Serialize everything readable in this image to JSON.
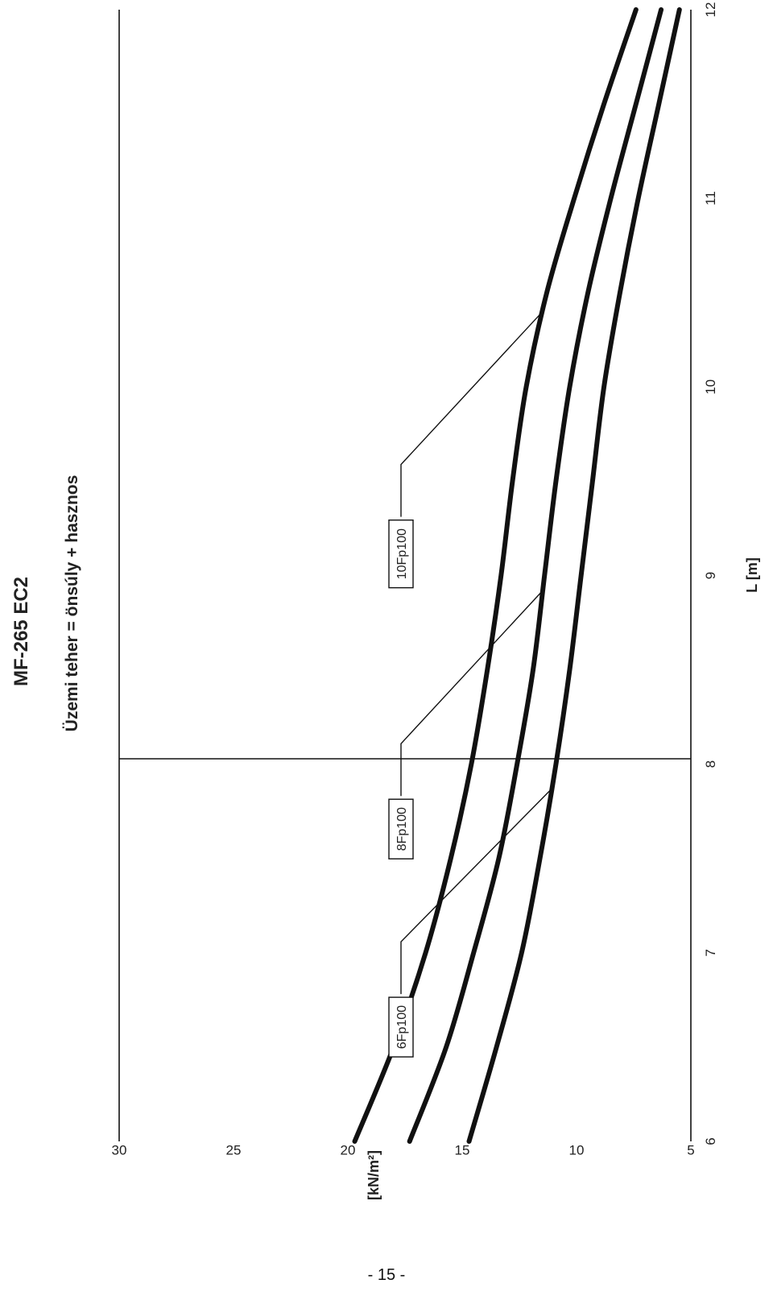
{
  "chart_data": {
    "type": "line",
    "title": "MF-265 EC2",
    "subtitle": "Üzemi teher = önsúly + hasznos",
    "xlabel": "L [m]",
    "ylabel": "[kN/m²]",
    "xlim": [
      6,
      12
    ],
    "ylim": [
      5,
      30
    ],
    "x_ticks": [
      6,
      7,
      8,
      9,
      10,
      11,
      12
    ],
    "y_ticks": [
      5,
      10,
      15,
      20,
      25,
      30
    ],
    "reference_x": 8,
    "grid": false,
    "series": [
      {
        "name": "10Fp100",
        "x": [
          6,
          6.5,
          7,
          7.5,
          8,
          8.5,
          9,
          9.5,
          10,
          10.5,
          11,
          11.5,
          12
        ],
        "y": [
          19.7,
          18.0,
          16.6,
          15.5,
          14.6,
          13.9,
          13.3,
          12.8,
          12.2,
          11.3,
          10.1,
          8.8,
          7.4
        ]
      },
      {
        "name": "8Fp100",
        "x": [
          6,
          6.5,
          7,
          7.5,
          8,
          8.5,
          9,
          9.5,
          10,
          10.5,
          11,
          11.5,
          12
        ],
        "y": [
          17.3,
          15.7,
          14.5,
          13.4,
          12.6,
          11.9,
          11.4,
          10.9,
          10.3,
          9.5,
          8.5,
          7.4,
          6.3
        ]
      },
      {
        "name": "6Fp100",
        "x": [
          6,
          6.5,
          7,
          7.5,
          8,
          8.5,
          9,
          9.5,
          10,
          10.5,
          11,
          11.5,
          12
        ],
        "y": [
          14.7,
          13.5,
          12.4,
          11.6,
          10.9,
          10.3,
          9.8,
          9.3,
          8.8,
          8.1,
          7.3,
          6.4,
          5.5
        ]
      }
    ],
    "annotations": [
      {
        "series": "6Fp100",
        "label": "6Fp100",
        "at_x": 7.87
      },
      {
        "series": "8Fp100",
        "label": "8Fp100",
        "at_x": 8.92
      },
      {
        "series": "10Fp100",
        "label": "10Fp100",
        "at_x": 10.4
      }
    ]
  },
  "page_number": "- 15 -"
}
